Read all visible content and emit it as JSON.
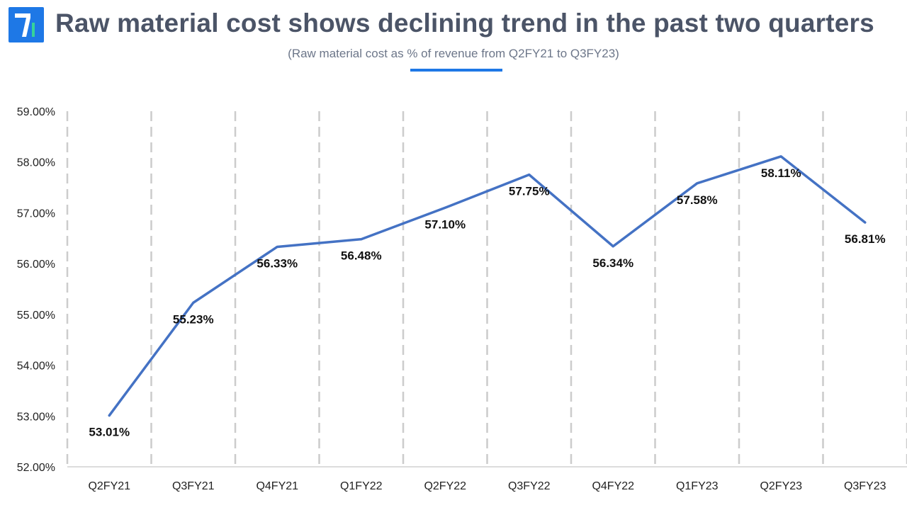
{
  "header": {
    "title": "Raw material cost shows declining trend in the past two quarters",
    "subtitle": "(Raw material cost as % of revenue from Q2FY21 to Q3FY23)",
    "logo_icon": "brand-logo-icon"
  },
  "colors": {
    "accent": "#1e78e6",
    "line": "#4472c4",
    "title": "#4b5467",
    "subtitle": "#6c7689",
    "gridline": "#cccccc"
  },
  "chart_data": {
    "type": "line",
    "title": "Raw material cost shows declining trend in the past two quarters",
    "subtitle": "(Raw material cost as % of revenue from Q2FY21 to Q3FY23)",
    "categories": [
      "Q2FY21",
      "Q3FY21",
      "Q4FY21",
      "Q1FY22",
      "Q2FY22",
      "Q3FY22",
      "Q4FY22",
      "Q1FY23",
      "Q2FY23",
      "Q3FY23"
    ],
    "series": [
      {
        "values": [
          53.01,
          55.23,
          56.33,
          56.48,
          57.1,
          57.75,
          56.34,
          57.58,
          58.11,
          56.81
        ],
        "data_labels": [
          "53.01%",
          "55.23%",
          "56.33%",
          "56.48%",
          "57.10%",
          "57.75%",
          "56.34%",
          "57.58%",
          "58.11%",
          "56.81%"
        ]
      }
    ],
    "ylim": [
      52,
      59
    ],
    "yticks": [
      52,
      53,
      54,
      55,
      56,
      57,
      58,
      59
    ],
    "ytick_labels": [
      "52.00%",
      "53.00%",
      "54.00%",
      "55.00%",
      "56.00%",
      "57.00%",
      "58.00%",
      "59.00%"
    ],
    "xlabel": "",
    "ylabel": "",
    "grid": "vertical dashed",
    "legend": "none"
  }
}
